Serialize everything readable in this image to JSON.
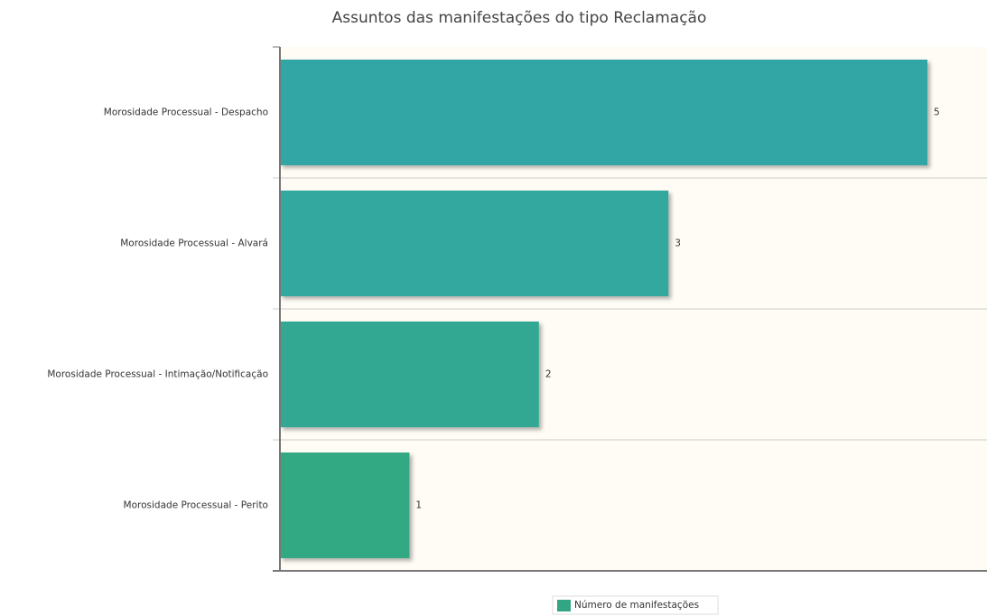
{
  "chart_data": {
    "type": "bar",
    "orientation": "horizontal",
    "title": "Assuntos das manifestações do tipo Reclamação",
    "categories": [
      "Morosidade Processual - Despacho",
      "Morosidade Processual - Alvará",
      "Morosidade Processual - Intimação/Notificação",
      "Morosidade Processual - Perito"
    ],
    "series": [
      {
        "name": "Número de manifestações",
        "color": "#33a585",
        "colors": [
          "#33a6a4",
          "#33a89f",
          "#33a892",
          "#33a883"
        ],
        "values": [
          5,
          3,
          2,
          1
        ]
      }
    ],
    "xlim": [
      0,
      5.46
    ]
  }
}
